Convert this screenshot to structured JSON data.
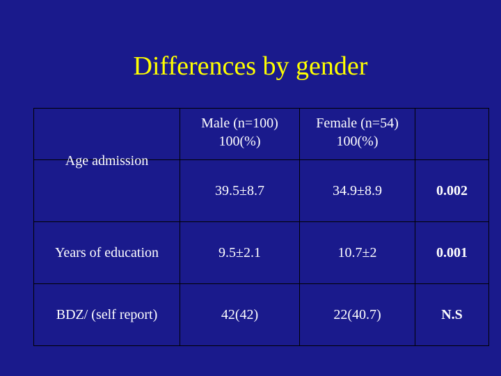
{
  "title": "Differences by gender",
  "table": {
    "headers": [
      {
        "line1": "",
        "line2": ""
      },
      {
        "line1": "Male (n=100)",
        "line2": "100(%)"
      },
      {
        "line1": "Female (n=54)",
        "line2": "100(%)"
      },
      {
        "line1": "",
        "line2": ""
      }
    ],
    "rows": [
      {
        "label": "Age admission",
        "male": "39.5±8.7",
        "female": "34.9±8.9",
        "p": "0.002"
      },
      {
        "label": "Years of education",
        "male": "9.5±2.1",
        "female": "10.7±2",
        "p": "0.001"
      },
      {
        "label": "BDZ/ (self report)",
        "male": "42(42)",
        "female": "22(40.7)",
        "p": "N.S"
      }
    ]
  },
  "colors": {
    "background": "#1a1a8c",
    "title": "#ffff00",
    "text": "#ffffff",
    "p_value": "#ffff00"
  }
}
